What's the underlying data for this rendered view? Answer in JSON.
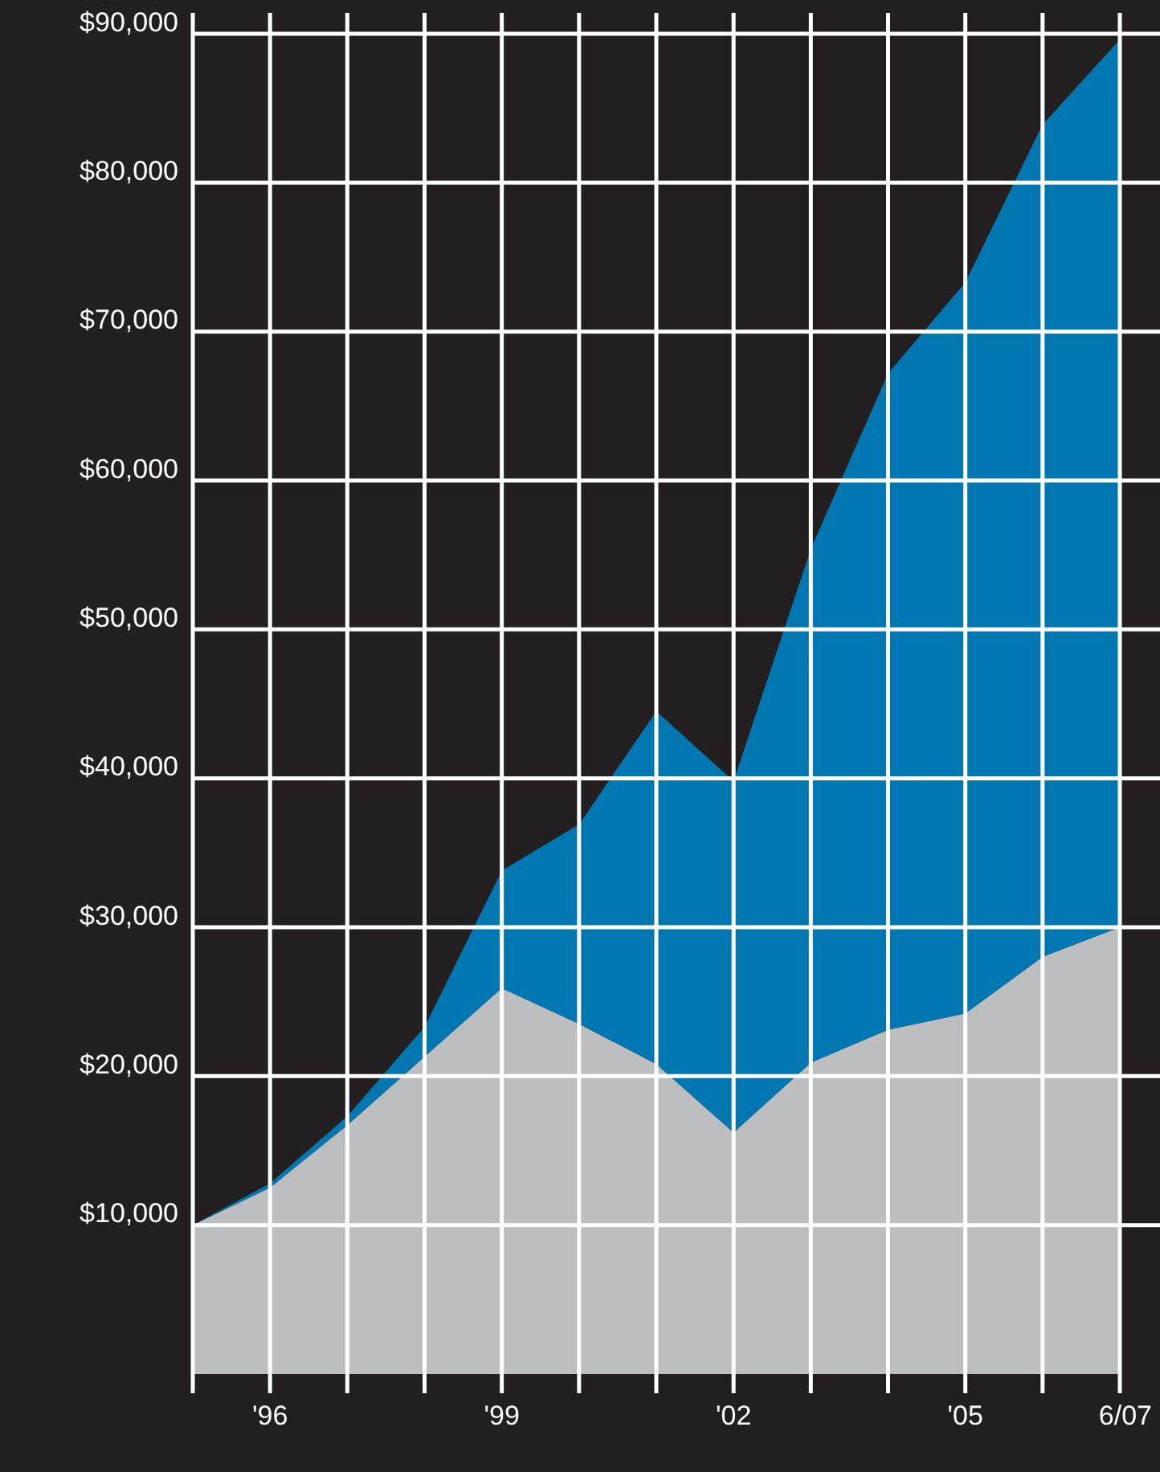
{
  "chart_data": {
    "type": "area",
    "stacked": true,
    "categories": [
      null,
      "'96",
      null,
      null,
      "'99",
      null,
      null,
      "'02",
      null,
      null,
      "'05",
      null,
      "6/07"
    ],
    "series": [
      {
        "color": "#bcbec0",
        "values": [
          10000,
          12500,
          16700,
          21300,
          25900,
          23500,
          20800,
          16200,
          20900,
          23100,
          24200,
          28000,
          30000
        ]
      },
      {
        "color": "#0077b0",
        "values": [
          0,
          300,
          600,
          2000,
          7900,
          13400,
          23700,
          23600,
          34500,
          44100,
          49100,
          55900,
          59600
        ]
      }
    ],
    "ylim": [
      0,
      91400
    ],
    "yticks": [
      {
        "value": 10000,
        "label": "$10,000"
      },
      {
        "value": 20000,
        "label": "$20,000"
      },
      {
        "value": 30000,
        "label": "$30,000"
      },
      {
        "value": 40000,
        "label": "$40,000"
      },
      {
        "value": 50000,
        "label": "$50,000"
      },
      {
        "value": 60000,
        "label": "$60,000"
      },
      {
        "value": 70000,
        "label": "$70,000"
      },
      {
        "value": 80000,
        "label": "$80,000"
      },
      {
        "value": 90000,
        "label": "$90,000"
      }
    ],
    "grid": true
  }
}
